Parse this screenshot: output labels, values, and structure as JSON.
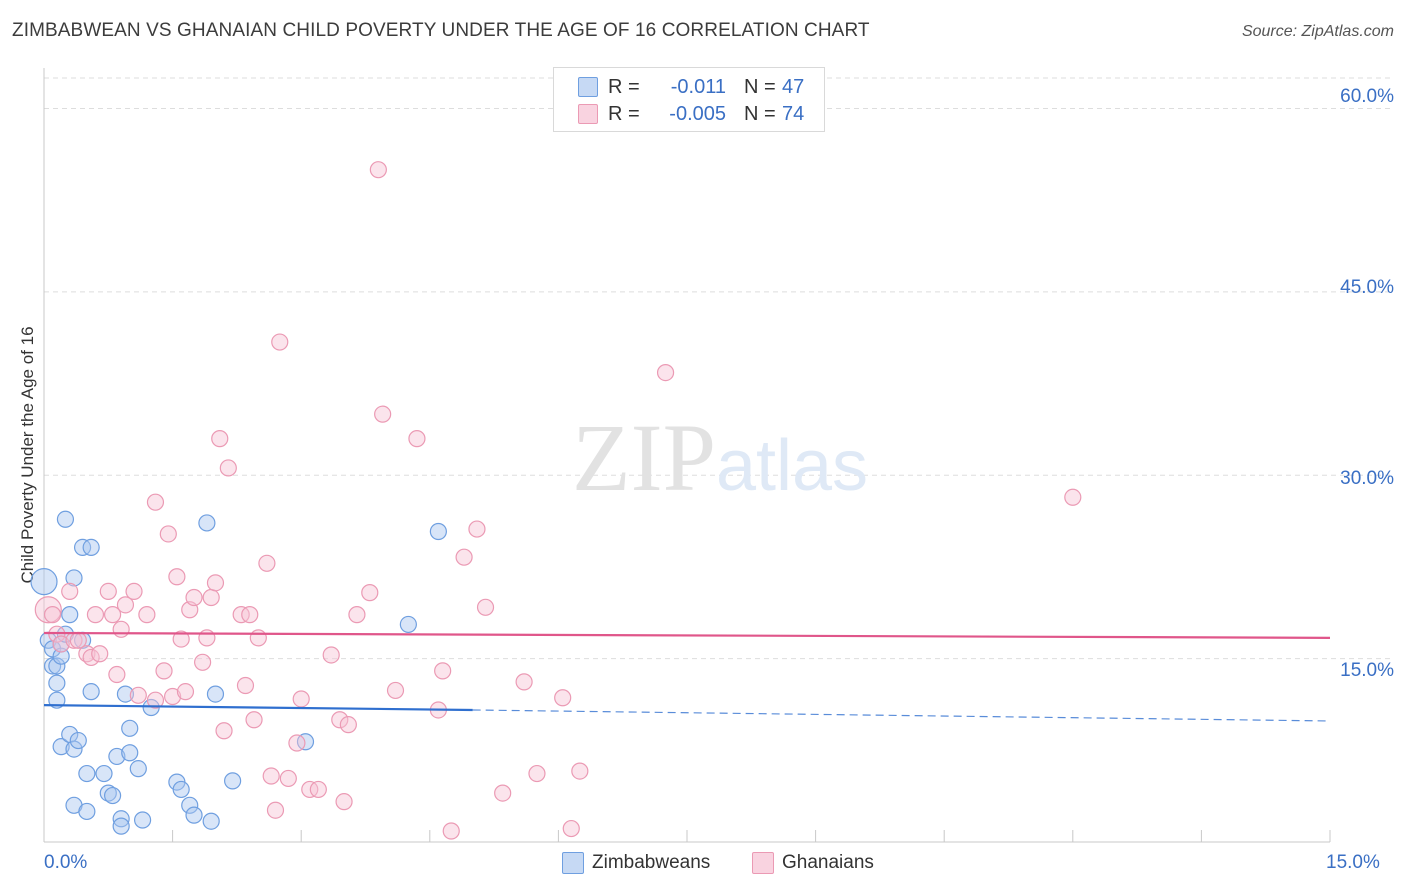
{
  "chart_data": {
    "type": "scatter",
    "title": "ZIMBABWEAN VS GHANAIAN CHILD POVERTY UNDER THE AGE OF 16 CORRELATION CHART",
    "source": "Source: ZipAtlas.com",
    "xlabel": "",
    "ylabel": "Child Poverty Under the Age of 16",
    "xlim": [
      0,
      15
    ],
    "ylim": [
      0,
      62.5
    ],
    "x_tick_labels": [
      "0.0%",
      "15.0%"
    ],
    "y_ticks": [
      15,
      30,
      45,
      60
    ],
    "y_tick_labels": [
      "15.0%",
      "30.0%",
      "45.0%",
      "60.0%"
    ],
    "grid": true,
    "watermark": "ZIPatlas",
    "legend_top": [
      {
        "swatch": "blue",
        "r_label": "R =",
        "r_value": "-0.011",
        "n_label": "N =",
        "n_value": "47"
      },
      {
        "swatch": "pink",
        "r_label": "R =",
        "r_value": "-0.005",
        "n_label": "N =",
        "n_value": "74"
      }
    ],
    "series": [
      {
        "name": "Zimbabweans",
        "color": "#6f9fe0",
        "fill": "#a9c6f0",
        "line_color": "#2f6fcf",
        "trend": {
          "x0": 0,
          "y0": 11.2,
          "x1": 5.0,
          "y1": 10.8,
          "x_dash_end": 15,
          "y_dash_end": 9.9
        },
        "points": [
          [
            0.0,
            21.3
          ],
          [
            0.05,
            16.5
          ],
          [
            0.1,
            15.8
          ],
          [
            0.1,
            14.4
          ],
          [
            0.15,
            14.4
          ],
          [
            0.15,
            13.0
          ],
          [
            0.15,
            11.6
          ],
          [
            0.2,
            15.2
          ],
          [
            0.2,
            16.2
          ],
          [
            0.25,
            17.0
          ],
          [
            0.25,
            26.4
          ],
          [
            0.3,
            18.6
          ],
          [
            0.35,
            21.6
          ],
          [
            0.45,
            24.1
          ],
          [
            0.45,
            16.5
          ],
          [
            0.55,
            24.1
          ],
          [
            0.2,
            7.8
          ],
          [
            0.3,
            8.8
          ],
          [
            0.35,
            7.6
          ],
          [
            0.4,
            8.3
          ],
          [
            0.35,
            3.0
          ],
          [
            0.5,
            5.6
          ],
          [
            0.55,
            12.3
          ],
          [
            0.5,
            2.5
          ],
          [
            0.7,
            5.6
          ],
          [
            0.75,
            4.0
          ],
          [
            0.8,
            3.8
          ],
          [
            0.85,
            7.0
          ],
          [
            0.9,
            1.9
          ],
          [
            0.9,
            1.3
          ],
          [
            0.95,
            12.1
          ],
          [
            1.0,
            9.3
          ],
          [
            1.0,
            7.3
          ],
          [
            1.1,
            6.0
          ],
          [
            1.15,
            1.8
          ],
          [
            1.25,
            11.0
          ],
          [
            1.55,
            4.9
          ],
          [
            1.6,
            4.3
          ],
          [
            1.7,
            3.0
          ],
          [
            1.75,
            2.2
          ],
          [
            1.9,
            26.1
          ],
          [
            1.95,
            1.7
          ],
          [
            2.0,
            12.1
          ],
          [
            2.2,
            5.0
          ],
          [
            3.05,
            8.2
          ],
          [
            4.25,
            17.8
          ],
          [
            4.6,
            25.4
          ]
        ]
      },
      {
        "name": "Ghanaians",
        "color": "#eb9ab4",
        "fill": "#f6c4d4",
        "line_color": "#e0568a",
        "trend": {
          "x0": 0,
          "y0": 17.1,
          "x1": 15,
          "y1": 16.7
        },
        "points": [
          [
            0.05,
            19.0
          ],
          [
            0.15,
            17.0
          ],
          [
            0.2,
            16.2
          ],
          [
            0.3,
            20.5
          ],
          [
            0.35,
            16.5
          ],
          [
            0.4,
            16.5
          ],
          [
            0.5,
            15.4
          ],
          [
            0.55,
            15.1
          ],
          [
            0.6,
            18.6
          ],
          [
            0.65,
            15.4
          ],
          [
            0.75,
            20.5
          ],
          [
            0.8,
            18.6
          ],
          [
            0.85,
            13.7
          ],
          [
            0.9,
            17.4
          ],
          [
            0.95,
            19.4
          ],
          [
            1.05,
            20.5
          ],
          [
            1.1,
            12.0
          ],
          [
            1.2,
            18.6
          ],
          [
            1.3,
            27.8
          ],
          [
            1.3,
            11.6
          ],
          [
            1.4,
            14.0
          ],
          [
            1.45,
            25.2
          ],
          [
            1.5,
            11.9
          ],
          [
            1.55,
            21.7
          ],
          [
            1.6,
            16.6
          ],
          [
            1.65,
            12.3
          ],
          [
            1.7,
            19.0
          ],
          [
            1.75,
            20.0
          ],
          [
            1.85,
            14.7
          ],
          [
            1.9,
            16.7
          ],
          [
            1.95,
            20.0
          ],
          [
            2.0,
            21.2
          ],
          [
            2.05,
            33.0
          ],
          [
            2.1,
            9.1
          ],
          [
            2.15,
            30.6
          ],
          [
            2.3,
            18.6
          ],
          [
            2.35,
            12.8
          ],
          [
            2.4,
            18.6
          ],
          [
            2.45,
            10.0
          ],
          [
            2.5,
            16.7
          ],
          [
            2.6,
            22.8
          ],
          [
            2.65,
            5.4
          ],
          [
            2.7,
            2.6
          ],
          [
            2.75,
            40.9
          ],
          [
            2.85,
            5.2
          ],
          [
            2.95,
            8.1
          ],
          [
            3.0,
            11.7
          ],
          [
            3.1,
            4.3
          ],
          [
            3.2,
            4.3
          ],
          [
            3.35,
            15.3
          ],
          [
            3.45,
            10.0
          ],
          [
            3.5,
            3.3
          ],
          [
            3.55,
            9.6
          ],
          [
            3.65,
            18.6
          ],
          [
            3.8,
            20.4
          ],
          [
            3.9,
            55.0
          ],
          [
            3.95,
            35.0
          ],
          [
            4.1,
            12.4
          ],
          [
            4.35,
            33.0
          ],
          [
            4.6,
            10.8
          ],
          [
            4.65,
            14.0
          ],
          [
            4.75,
            0.9
          ],
          [
            4.9,
            23.3
          ],
          [
            5.05,
            25.6
          ],
          [
            5.15,
            19.2
          ],
          [
            5.35,
            4.0
          ],
          [
            5.6,
            13.1
          ],
          [
            5.75,
            5.6
          ],
          [
            6.05,
            11.8
          ],
          [
            6.15,
            1.1
          ],
          [
            6.25,
            5.8
          ],
          [
            7.25,
            38.4
          ],
          [
            12.0,
            28.2
          ],
          [
            0.1,
            18.6
          ]
        ]
      }
    ]
  }
}
